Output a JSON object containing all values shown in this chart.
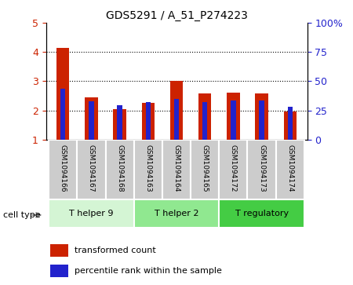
{
  "title": "GDS5291 / A_51_P274223",
  "samples": [
    "GSM1094166",
    "GSM1094167",
    "GSM1094168",
    "GSM1094163",
    "GSM1094164",
    "GSM1094165",
    "GSM1094172",
    "GSM1094173",
    "GSM1094174"
  ],
  "red_values": [
    4.15,
    2.45,
    2.05,
    2.25,
    3.02,
    2.58,
    2.62,
    2.57,
    1.97
  ],
  "blue_values": [
    2.75,
    2.32,
    2.18,
    2.28,
    2.4,
    2.3,
    2.35,
    2.33,
    2.13
  ],
  "ylim_left": [
    1,
    5
  ],
  "ylim_right": [
    0,
    100
  ],
  "yticks_left": [
    1,
    2,
    3,
    4,
    5
  ],
  "yticks_right": [
    0,
    25,
    50,
    75,
    100
  ],
  "yticklabels_right": [
    "0",
    "25",
    "50",
    "75",
    "100%"
  ],
  "cell_types": [
    {
      "label": "T helper 9",
      "span": [
        0,
        3
      ],
      "color": "#d4f5d4"
    },
    {
      "label": "T helper 2",
      "span": [
        3,
        6
      ],
      "color": "#90e890"
    },
    {
      "label": "T regulatory",
      "span": [
        6,
        9
      ],
      "color": "#44cc44"
    }
  ],
  "cell_type_label": "cell type",
  "legend_red": "transformed count",
  "legend_blue": "percentile rank within the sample",
  "bar_width": 0.45,
  "blue_bar_width": 0.18,
  "red_color": "#cc2200",
  "blue_color": "#2222cc",
  "bg_color": "#ffffff",
  "tick_color_left": "#cc2200",
  "tick_color_right": "#2222cc",
  "sample_box_color": "#cccccc",
  "sample_box_edge": "#aaaaaa"
}
